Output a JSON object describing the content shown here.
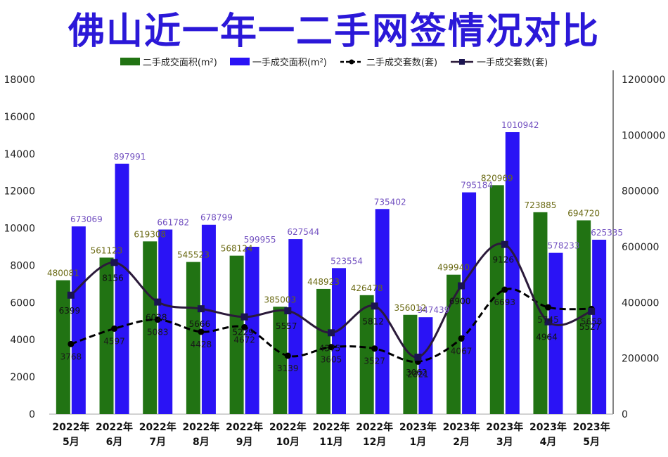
{
  "title": "佛山近一年一二手网签情况对比",
  "colors": {
    "title": "#2b18d8",
    "second_hand_area": "#217313",
    "first_hand_area": "#2a13f5",
    "second_hand_count_line": "#000000",
    "first_hand_count_line": "#2b1a3a",
    "second_hand_area_label": "#6b6a14",
    "first_hand_area_label": "#7250c0"
  },
  "chart_data": {
    "type": "bar",
    "categories": [
      [
        "2022年",
        "5月"
      ],
      [
        "2022年",
        "6月"
      ],
      [
        "2022年",
        "7月"
      ],
      [
        "2022年",
        "8月"
      ],
      [
        "2022年",
        "9月"
      ],
      [
        "2022年",
        "10月"
      ],
      [
        "2022年",
        "11月"
      ],
      [
        "2022年",
        "12月"
      ],
      [
        "2023年",
        "1月"
      ],
      [
        "2023年",
        "2月"
      ],
      [
        "2023年",
        "3月"
      ],
      [
        "2023年",
        "4月"
      ],
      [
        "2023年",
        "5月"
      ]
    ],
    "series": [
      {
        "name": "二手成交面积(m²)",
        "type": "bar",
        "axis": "right",
        "values": [
          480081,
          561123,
          619308,
          545523,
          568124,
          385003,
          448923,
          426478,
          356012,
          499940,
          820969,
          723885,
          694720
        ]
      },
      {
        "name": "一手成交面积(m²)",
        "type": "bar",
        "axis": "right",
        "values": [
          673069,
          897991,
          661782,
          678799,
          599955,
          627544,
          523554,
          735402,
          347439,
          795184,
          1010942,
          578233,
          625335
        ]
      },
      {
        "name": "二手成交套数(套)",
        "type": "line",
        "style": "dashed",
        "axis": "left",
        "values": [
          3768,
          4597,
          5083,
          4428,
          4672,
          3139,
          3605,
          3527,
          2821,
          4067,
          6693,
          5745,
          5658
        ]
      },
      {
        "name": "一手成交套数(套)",
        "type": "line",
        "style": "solid",
        "axis": "left",
        "values": [
          6399,
          8156,
          6028,
          5666,
          5229,
          5557,
          4375,
          5812,
          3062,
          6900,
          9126,
          4964,
          5527
        ]
      }
    ],
    "bar_labels": {
      "second_hand_area": [
        "480081",
        "561123",
        "619308",
        "545523",
        "568124",
        "385003",
        "448923",
        "426478",
        "356012",
        "499940",
        "820969",
        "723885",
        "694720"
      ],
      "first_hand_area": [
        "673069",
        "897991",
        "661782",
        "678799",
        "599955",
        "627544",
        "523554",
        "735402",
        "347439",
        "795184",
        "1010942",
        "578233",
        "625335"
      ]
    },
    "line_labels": {
      "second_hand_count": [
        "3768",
        "4597",
        "5083",
        "4428",
        "4672",
        "3139",
        "3605",
        "3527",
        "2821",
        "4067",
        "6693",
        "5745",
        "5658"
      ],
      "first_hand_count": [
        "6399",
        "8156",
        "6028",
        "5666",
        "5229",
        "5557",
        "4375",
        "5812",
        "3062",
        "6900",
        "9126",
        "4964",
        "5527"
      ]
    },
    "y_left": {
      "min": 0,
      "max": 18000,
      "ticks": [
        "0",
        "2000",
        "4000",
        "6000",
        "8000",
        "10000",
        "12000",
        "14000",
        "16000",
        "18000"
      ]
    },
    "y_right": {
      "min": 0,
      "max": 1200000,
      "ticks": [
        "0",
        "200000",
        "400000",
        "600000",
        "800000",
        "1000000",
        "1200000"
      ]
    },
    "legend_position": "top",
    "grid": false
  }
}
